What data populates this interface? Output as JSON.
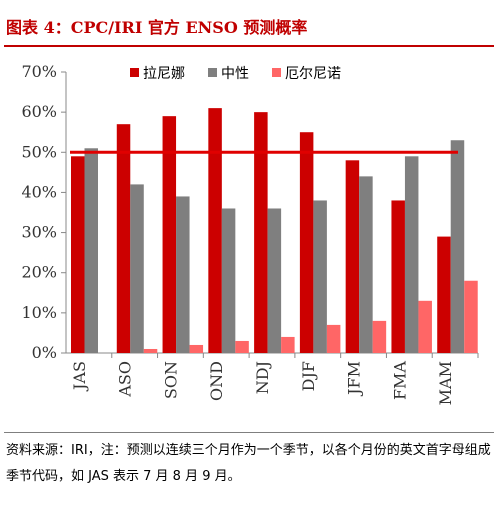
{
  "title": "图表 4：CPC/IRI 官方 ENSO 预测概率",
  "source_note": "资料来源：IRI，注：预测以连续三个月作为一个季节，以各个月份的英文首字母组成季节代码，如 JAS 表示 7 月 8 月 9 月。",
  "colors": {
    "title": "#c00000",
    "la_nina": "#cc0000",
    "neutral": "#7f7f7f",
    "el_nino": "#ff6666",
    "threshold_line": "#e00000"
  },
  "chart_data": {
    "type": "bar",
    "categories": [
      "JAS",
      "ASO",
      "SON",
      "OND",
      "NDJ",
      "DJF",
      "JFM",
      "FMA",
      "MAM"
    ],
    "series": [
      {
        "name": "拉尼娜",
        "values": [
          49,
          57,
          59,
          61,
          60,
          55,
          48,
          38,
          29
        ]
      },
      {
        "name": "中性",
        "values": [
          51,
          42,
          39,
          36,
          36,
          38,
          44,
          49,
          53
        ]
      },
      {
        "name": "厄尔尼诺",
        "values": [
          0,
          1,
          2,
          3,
          4,
          7,
          8,
          13,
          18
        ]
      }
    ],
    "reference_line": 50,
    "ylim": [
      0,
      70
    ],
    "yticks": [
      "0%",
      "10%",
      "20%",
      "30%",
      "40%",
      "50%",
      "60%",
      "70%"
    ],
    "legend_position": "top-right",
    "grid": false
  }
}
